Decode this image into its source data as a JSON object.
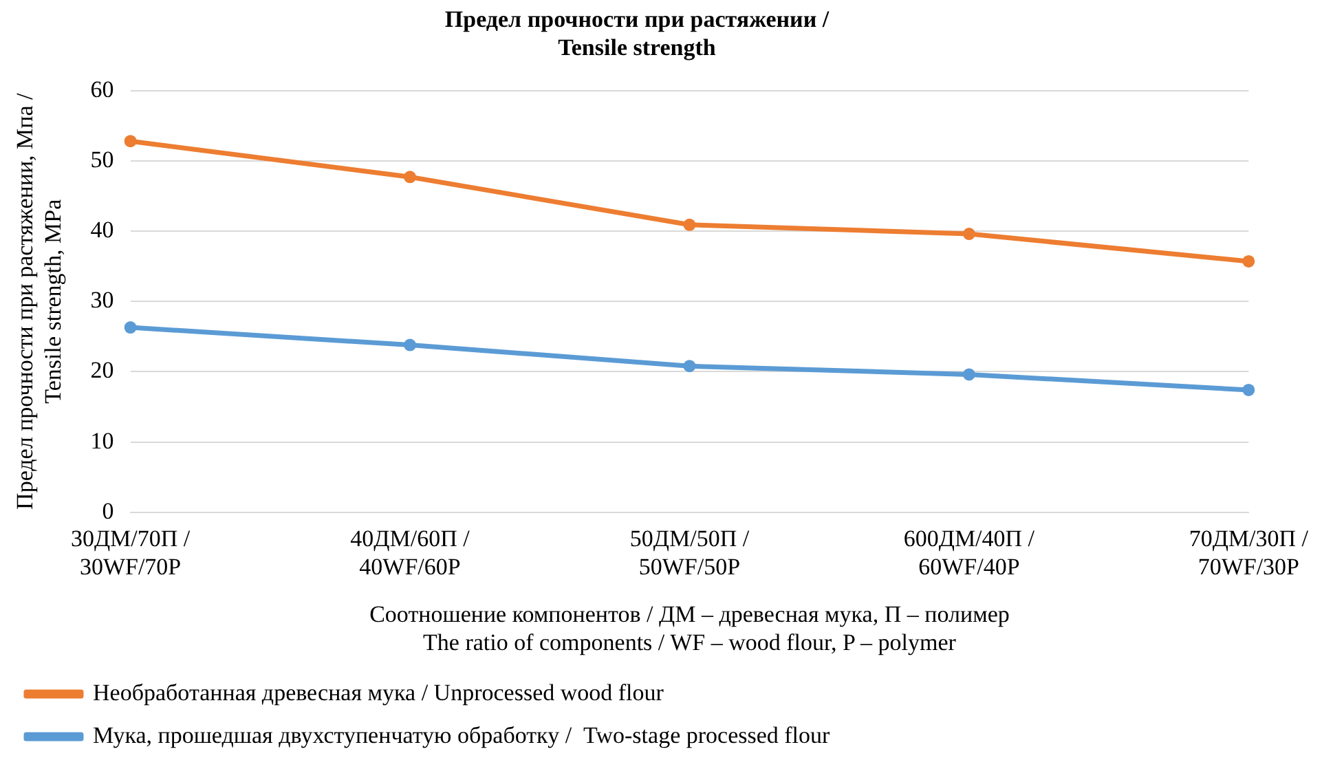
{
  "chart_data": {
    "type": "line",
    "title": "Предел прочности при растяжении /\nTensile strength",
    "xlabel": "Соотношение компонентов / ДМ – древесная мука, П – полимер\nThe ratio of components / WF – wood flour, P – polymer",
    "ylabel": "Предел прочности при растяжении, Мпа /\nTensile strength, MPa",
    "categories": [
      "30ДМ/70П /\n30WF/70P",
      "40ДМ/60П /\n40WF/60P",
      "50ДМ/50П /\n50WF/50P",
      "600ДМ/40П /\n60WF/40P",
      "70ДМ/30П /\n70WF/30P"
    ],
    "series": [
      {
        "name": "Необработанная древесная мука / Unprocessed wood flour",
        "color": "#ed7d31",
        "values": [
          52.8,
          47.7,
          40.9,
          39.6,
          35.7
        ]
      },
      {
        "name": "Мука, прошедшая двухступенчатую обработку /  Two-stage processed flour",
        "color": "#5b9bd5",
        "values": [
          26.3,
          23.8,
          20.8,
          19.6,
          17.4
        ]
      }
    ],
    "ylim": [
      0,
      60
    ],
    "yticks": [
      0,
      10,
      20,
      30,
      40,
      50,
      60
    ],
    "grid": "y",
    "legend": "bottom",
    "marker": "circle",
    "line_style": "solid"
  }
}
